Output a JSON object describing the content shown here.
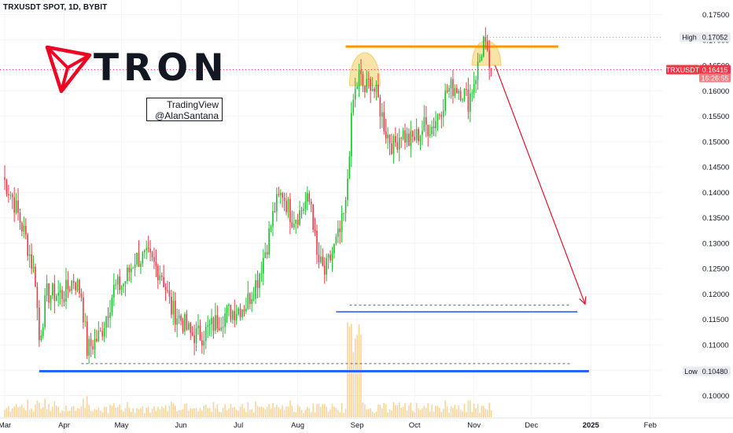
{
  "header": {
    "symbol_line": "TRXUSDT SPOT, 1D, BYBIT"
  },
  "logo": {
    "word": "TRON",
    "icon": "tron-logo-icon",
    "color": "#ec0623"
  },
  "watermark": {
    "line1": "TradingView",
    "line2": "@AlanSantana"
  },
  "colors": {
    "up": "#22ab94",
    "up_bright": "#19c12b",
    "down": "#f23645",
    "orange": "#ff9800",
    "blue": "#2962ff",
    "volume": "#f5c57a",
    "dome": "#f7dc8a",
    "arrow": "#e0122a"
  },
  "chart_data": {
    "type": "candlestick",
    "title": "TRXUSDT SPOT, 1D, BYBIT",
    "xlabel": "",
    "ylabel": "",
    "ylim": [
      0.0955,
      0.1775
    ],
    "y_ticks": [
      "0.17500",
      "0.17000",
      "0.16500",
      "0.16000",
      "0.15500",
      "0.15000",
      "0.14500",
      "0.14000",
      "0.13500",
      "0.13000",
      "0.12500",
      "0.12000",
      "0.11500",
      "0.11000",
      "0.10500",
      "0.10000"
    ],
    "x_ticks": [
      "Mar",
      "Apr",
      "May",
      "Jun",
      "Jul",
      "Aug",
      "Sep",
      "Oct",
      "Nov",
      "Dec",
      "2025",
      "Feb"
    ],
    "price_labels": {
      "high": {
        "label": "High",
        "value": "0.17052"
      },
      "current": {
        "label": "TRXUSDT",
        "value": "0.16415",
        "countdown": "16:26:55"
      },
      "low": {
        "label": "Low",
        "value": "0.10480"
      }
    },
    "price_path": [
      [
        "2024-02-29",
        0.143
      ],
      [
        "2024-03-05",
        0.139
      ],
      [
        "2024-03-12",
        0.131
      ],
      [
        "2024-03-17",
        0.123
      ],
      [
        "2024-03-19",
        0.111
      ],
      [
        "2024-03-23",
        0.12
      ],
      [
        "2024-04-01",
        0.12
      ],
      [
        "2024-04-06",
        0.123
      ],
      [
        "2024-04-10",
        0.12
      ],
      [
        "2024-04-13",
        0.109
      ],
      [
        "2024-04-20",
        0.112
      ],
      [
        "2024-04-27",
        0.121
      ],
      [
        "2024-05-02",
        0.122
      ],
      [
        "2024-05-08",
        0.127
      ],
      [
        "2024-05-15",
        0.127
      ],
      [
        "2024-05-22",
        0.124
      ],
      [
        "2024-05-27",
        0.117
      ],
      [
        "2024-06-01",
        0.115
      ],
      [
        "2024-06-06",
        0.112
      ],
      [
        "2024-06-12",
        0.112
      ],
      [
        "2024-06-18",
        0.114
      ],
      [
        "2024-06-24",
        0.116
      ],
      [
        "2024-06-30",
        0.117
      ],
      [
        "2024-07-05",
        0.118
      ],
      [
        "2024-07-11",
        0.123
      ],
      [
        "2024-07-16",
        0.13
      ],
      [
        "2024-07-20",
        0.137
      ],
      [
        "2024-07-24",
        0.14
      ],
      [
        "2024-07-29",
        0.135
      ],
      [
        "2024-08-02",
        0.136
      ],
      [
        "2024-08-05",
        0.138
      ],
      [
        "2024-08-08",
        0.138
      ],
      [
        "2024-08-11",
        0.127
      ],
      [
        "2024-08-15",
        0.124
      ],
      [
        "2024-08-19",
        0.128
      ],
      [
        "2024-08-23",
        0.132
      ],
      [
        "2024-08-26",
        0.137
      ],
      [
        "2024-08-28",
        0.149
      ],
      [
        "2024-08-30",
        0.158
      ],
      [
        "2024-09-02",
        0.163
      ],
      [
        "2024-09-05",
        0.16
      ],
      [
        "2024-09-08",
        0.162
      ],
      [
        "2024-09-12",
        0.158
      ],
      [
        "2024-09-16",
        0.152
      ],
      [
        "2024-09-20",
        0.149
      ],
      [
        "2024-09-24",
        0.152
      ],
      [
        "2024-09-28",
        0.15
      ],
      [
        "2024-10-02",
        0.151
      ],
      [
        "2024-10-06",
        0.153
      ],
      [
        "2024-10-10",
        0.153
      ],
      [
        "2024-10-14",
        0.156
      ],
      [
        "2024-10-18",
        0.16
      ],
      [
        "2024-10-22",
        0.161
      ],
      [
        "2024-10-26",
        0.16
      ],
      [
        "2024-10-29",
        0.158
      ],
      [
        "2024-11-01",
        0.162
      ],
      [
        "2024-11-04",
        0.166
      ],
      [
        "2024-11-06",
        0.17
      ],
      [
        "2024-11-08",
        0.166
      ],
      [
        "2024-11-10",
        0.164
      ]
    ],
    "annotations": {
      "resistance": {
        "value": 0.1687,
        "from": "2024-08-26",
        "to": "2024-12-15"
      },
      "support_mid": {
        "value": 0.1165,
        "from": "2024-08-21",
        "to": "2024-12-25"
      },
      "support_mid_dashed": {
        "value": 0.1178,
        "from": "2024-08-28",
        "to": "2024-12-21"
      },
      "support_low": {
        "value": 0.1048,
        "from": "2024-03-19",
        "to": "2024-12-31"
      },
      "support_low_dashed": {
        "value": 0.1063,
        "from": "2024-04-10",
        "to": "2024-12-22"
      },
      "target_arrow": {
        "from": [
          "2024-11-12",
          0.165
        ],
        "to": [
          "2024-12-29",
          0.118
        ]
      },
      "domes": [
        {
          "from": "2024-08-28",
          "to": "2024-09-13",
          "top": 0.1687,
          "bottom": 0.161
        },
        {
          "from": "2024-10-31",
          "to": "2024-11-15",
          "top": 0.1705,
          "bottom": 0.165
        }
      ]
    }
  }
}
